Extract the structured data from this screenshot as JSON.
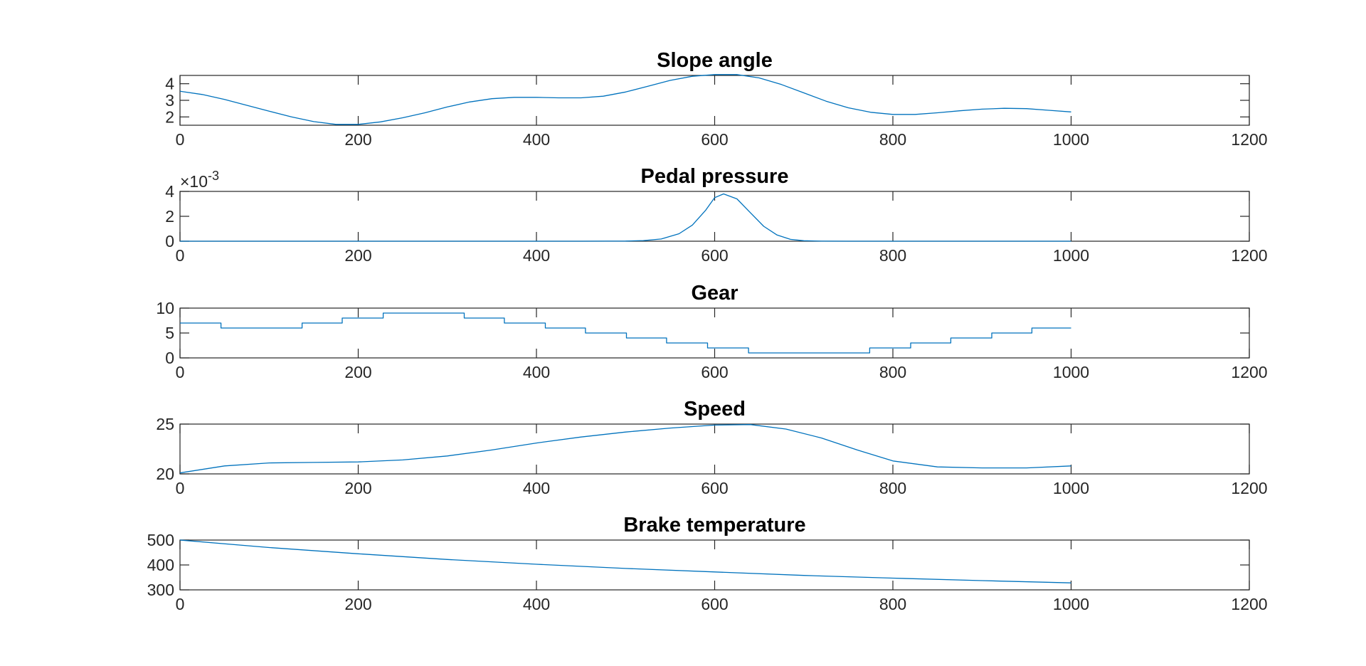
{
  "chart_data": [
    {
      "type": "line",
      "title": "Slope angle",
      "xlabel": "",
      "ylabel": "",
      "xlim": [
        0,
        1200
      ],
      "ylim": [
        1.5,
        4.5
      ],
      "xticks": [
        "0",
        "200",
        "400",
        "600",
        "800",
        "1000",
        "1200"
      ],
      "yticks": [
        "2",
        "3",
        "4"
      ],
      "exponent_label": "",
      "grid": false,
      "color": "#0072BD",
      "x": [
        0,
        25,
        50,
        75,
        100,
        125,
        150,
        175,
        200,
        225,
        250,
        275,
        300,
        325,
        350,
        375,
        400,
        425,
        450,
        475,
        500,
        525,
        550,
        575,
        600,
        625,
        650,
        675,
        700,
        725,
        750,
        775,
        800,
        825,
        850,
        875,
        900,
        925,
        950,
        975,
        1000
      ],
      "y": [
        3.55,
        3.35,
        3.05,
        2.7,
        2.35,
        2.0,
        1.72,
        1.55,
        1.55,
        1.7,
        1.95,
        2.25,
        2.6,
        2.9,
        3.1,
        3.18,
        3.18,
        3.15,
        3.15,
        3.25,
        3.5,
        3.85,
        4.2,
        4.45,
        4.55,
        4.55,
        4.35,
        3.95,
        3.45,
        2.95,
        2.55,
        2.28,
        2.15,
        2.15,
        2.25,
        2.37,
        2.47,
        2.52,
        2.5,
        2.4,
        2.3
      ]
    },
    {
      "type": "line",
      "title": "Pedal pressure",
      "xlabel": "",
      "ylabel": "",
      "xlim": [
        0,
        1200
      ],
      "ylim": [
        0,
        0.004
      ],
      "xticks": [
        "0",
        "200",
        "400",
        "600",
        "800",
        "1000",
        "1200"
      ],
      "yticks": [
        "0",
        "2",
        "4"
      ],
      "exponent_label": "×10",
      "exponent_power": "-3",
      "grid": false,
      "color": "#0072BD",
      "x": [
        0,
        100,
        200,
        300,
        400,
        450,
        480,
        500,
        520,
        540,
        560,
        575,
        590,
        600,
        610,
        625,
        640,
        655,
        670,
        685,
        700,
        720,
        750,
        800,
        900,
        1000
      ],
      "y": [
        0,
        0,
        0,
        0,
        0,
        0,
        3e-06,
        1e-05,
        5e-05,
        0.00018,
        0.0006,
        0.0013,
        0.0025,
        0.0035,
        0.0038,
        0.0034,
        0.0023,
        0.0012,
        0.0005,
        0.00015,
        4e-05,
        5e-06,
        0,
        0,
        0,
        0
      ]
    },
    {
      "type": "line",
      "title": "Gear",
      "xlabel": "",
      "ylabel": "",
      "xlim": [
        0,
        1200
      ],
      "ylim": [
        0,
        10
      ],
      "xticks": [
        "0",
        "200",
        "400",
        "600",
        "800",
        "1000",
        "1200"
      ],
      "yticks": [
        "0",
        "5",
        "10"
      ],
      "exponent_label": "",
      "grid": false,
      "color": "#0072BD",
      "x": [
        0,
        46,
        46,
        137,
        137,
        182,
        182,
        228,
        228,
        319,
        319,
        364,
        364,
        410,
        410,
        455,
        455,
        501,
        501,
        546,
        546,
        592,
        592,
        638,
        638,
        774,
        774,
        820,
        820,
        865,
        865,
        911,
        911,
        956,
        956,
        1000
      ],
      "y": [
        7,
        7,
        6,
        6,
        7,
        7,
        8,
        8,
        9,
        9,
        8,
        8,
        7,
        7,
        6,
        6,
        5,
        5,
        4,
        4,
        3,
        3,
        2,
        2,
        1,
        1,
        2,
        2,
        3,
        3,
        4,
        4,
        5,
        5,
        6,
        6
      ]
    },
    {
      "type": "line",
      "title": "Speed",
      "xlabel": "",
      "ylabel": "",
      "xlim": [
        0,
        1200
      ],
      "ylim": [
        20,
        25
      ],
      "xticks": [
        "0",
        "200",
        "400",
        "600",
        "800",
        "1000",
        "1200"
      ],
      "yticks": [
        "20",
        "25"
      ],
      "exponent_label": "",
      "grid": false,
      "color": "#0072BD",
      "x": [
        0,
        50,
        100,
        150,
        200,
        250,
        300,
        350,
        400,
        450,
        500,
        550,
        600,
        640,
        680,
        720,
        760,
        800,
        850,
        900,
        950,
        1000
      ],
      "y": [
        20.1,
        20.8,
        21.1,
        21.15,
        21.2,
        21.4,
        21.8,
        22.4,
        23.1,
        23.7,
        24.2,
        24.6,
        24.9,
        24.95,
        24.5,
        23.6,
        22.4,
        21.3,
        20.7,
        20.6,
        20.6,
        20.8
      ]
    },
    {
      "type": "line",
      "title": "Brake temperature",
      "xlabel": "",
      "ylabel": "",
      "xlim": [
        0,
        1200
      ],
      "ylim": [
        300,
        500
      ],
      "xticks": [
        "0",
        "200",
        "400",
        "600",
        "800",
        "1000",
        "1200"
      ],
      "yticks": [
        "300",
        "400",
        "500"
      ],
      "exponent_label": "",
      "grid": false,
      "color": "#0072BD",
      "x": [
        0,
        100,
        200,
        300,
        400,
        500,
        600,
        700,
        800,
        900,
        1000
      ],
      "y": [
        500,
        470,
        445,
        422,
        403,
        386,
        372,
        358,
        347,
        337,
        328
      ]
    }
  ]
}
